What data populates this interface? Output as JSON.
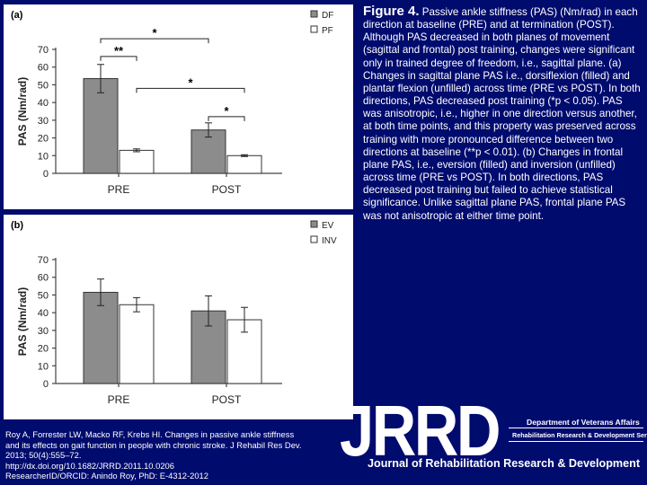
{
  "caption": {
    "figure_label": "Figure 4.",
    "text": " Passive ankle stiffness (PAS) (Nm/rad) in each direction at baseline (PRE) and at termination (POST). Although PAS decreased in both planes of movement (sagittal and frontal) post training, changes were significant only in trained degree of freedom, i.e., sagittal plane. (a) Changes in sagittal plane PAS i.e., dorsiflexion (filled) and plantar flexion (unfilled) across time (PRE vs POST). In both directions, PAS decreased post training (*p < 0.05). PAS was anisotropic, i.e., higher in one direction versus another, at both time points, and this property was preserved across training with more pronounced difference between two directions at baseline (**p < 0.01). (b) Changes in frontal plane PAS, i.e., eversion (filled) and inversion (unfilled) across time (PRE vs POST). In both directions, PAS decreased post training but failed to achieve statistical significance. Unlike sagittal plane PAS, frontal plane PAS was not anisotropic at either time point."
  },
  "citation": {
    "line1": "Roy A, Forrester LW, Macko RF, Krebs HI. Changes in passive ankle stiffness",
    "line2": "and its effects on gait function in people with chronic stroke. J Rehabil Res Dev.",
    "line3": "2013; 50(4):555–72.",
    "line4": "http://dx.doi.org/10.1682/JRRD.2011.10.0206",
    "line5": "ResearcherID/ORCID: Anindo Roy, PhD: E-4312-2012"
  },
  "branding": {
    "logo": "JRRD",
    "dept": "Department of Veterans Affairs",
    "rrd": "Rehabilitation Research & Development Service",
    "journal": "Journal of Rehabilitation Research & Development"
  },
  "colors": {
    "background": "#000b6e",
    "filled_bar": "#8c8c8c",
    "unfilled_bar": "#ffffff"
  },
  "chart_data": [
    {
      "type": "bar",
      "panel_label": "(a)",
      "categories": [
        "PRE",
        "POST"
      ],
      "ylabel": "PAS (Nm/rad)",
      "xlabel": "",
      "ylim": [
        0,
        70
      ],
      "yticks": [
        0,
        10,
        20,
        30,
        40,
        50,
        60,
        70
      ],
      "legend_position": "top-right",
      "series": [
        {
          "name": "DF",
          "fill": "filled",
          "values": [
            53.5,
            24.5
          ],
          "errors": [
            8,
            4
          ]
        },
        {
          "name": "PF",
          "fill": "unfilled",
          "values": [
            13,
            10
          ],
          "errors": [
            0.8,
            0.5
          ]
        }
      ],
      "significance": [
        {
          "label": "*",
          "from": [
            0,
            0
          ],
          "to": [
            1,
            0
          ],
          "level": 76
        },
        {
          "label": "**",
          "from": [
            0,
            0
          ],
          "to": [
            0,
            1
          ],
          "level": 66
        },
        {
          "label": "*",
          "from": [
            0,
            1
          ],
          "to": [
            1,
            1
          ],
          "level": 48
        },
        {
          "label": "*",
          "from": [
            1,
            0
          ],
          "to": [
            1,
            1
          ],
          "level": 32
        }
      ]
    },
    {
      "type": "bar",
      "panel_label": "(b)",
      "categories": [
        "PRE",
        "POST"
      ],
      "ylabel": "PAS (Nm/rad)",
      "xlabel": "",
      "ylim": [
        0,
        70
      ],
      "yticks": [
        0,
        10,
        20,
        30,
        40,
        50,
        60,
        70
      ],
      "legend_position": "top-right",
      "series": [
        {
          "name": "EV",
          "fill": "filled",
          "values": [
            51.5,
            41
          ],
          "errors": [
            7.5,
            8.5
          ]
        },
        {
          "name": "INV",
          "fill": "unfilled",
          "values": [
            44.5,
            36
          ],
          "errors": [
            4,
            7
          ]
        }
      ],
      "significance": []
    }
  ]
}
